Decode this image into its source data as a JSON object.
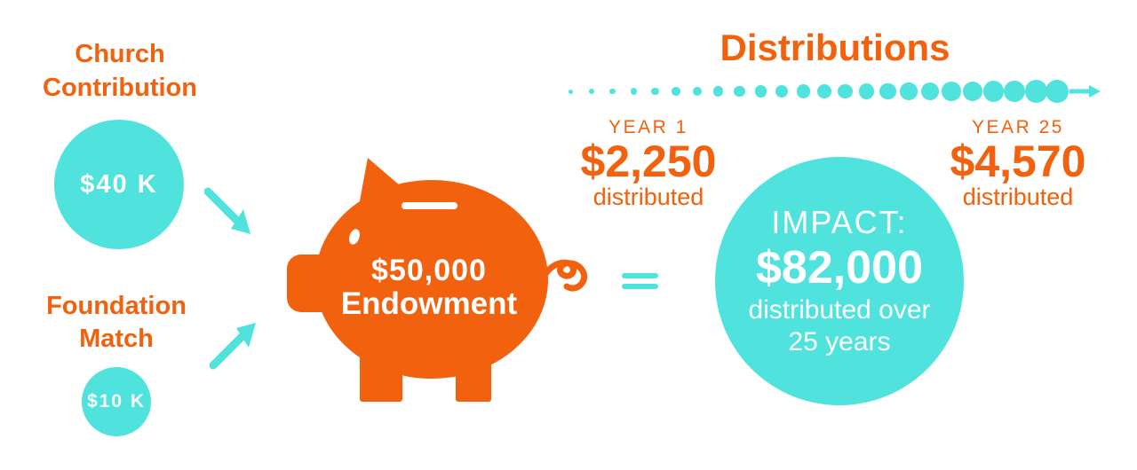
{
  "colors": {
    "orange": "#F2610D",
    "cyan": "#50E3DE",
    "text_on_shapes": "#FFFFFF"
  },
  "inputs": {
    "church": {
      "label": "Church Contribution",
      "amount": "$40 K"
    },
    "foundation": {
      "label": "Foundation Match",
      "amount": "$10 K"
    }
  },
  "endowment": {
    "amount": "$50,000",
    "label": "Endowment"
  },
  "distributions": {
    "title": "Distributions",
    "year1": {
      "year_label": "YEAR 1",
      "amount": "$2,250",
      "caption": "distributed"
    },
    "year25": {
      "year_label": "YEAR 25",
      "amount": "$4,570",
      "caption": "distributed"
    },
    "timeline": {
      "dot_count": 24,
      "min_diameter": 5,
      "max_diameter": 26,
      "span": 548
    }
  },
  "impact": {
    "title": "IMPACT:",
    "amount": "$82,000",
    "caption_line1": "distributed over",
    "caption_line2": "25 years"
  },
  "icons": {
    "piggy_bank": "piggy-bank",
    "flow_arrows": "diagonal-arrow",
    "timeline_arrow": "right-arrow",
    "equals": "equals-sign"
  }
}
